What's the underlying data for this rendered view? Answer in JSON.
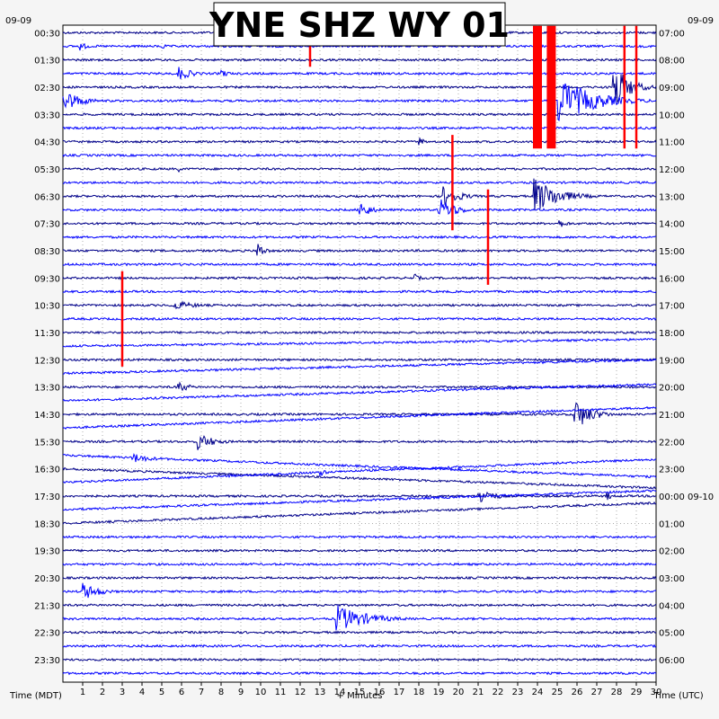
{
  "chart_data": {
    "type": "line",
    "title": "YNE SHZ WY 01",
    "xlabel": "+ Minutes",
    "left_axis_label": "Time (MDT)",
    "right_axis_label": "Time (UTC)",
    "left_date": "09-09",
    "right_date": "09-09",
    "xlim": [
      0,
      30
    ],
    "x_ticks": [
      "1",
      "2",
      "3",
      "4",
      "5",
      "6",
      "7",
      "8",
      "9",
      "10",
      "11",
      "12",
      "13",
      "14",
      "15",
      "16",
      "17",
      "18",
      "19",
      "20",
      "21",
      "22",
      "23",
      "24",
      "25",
      "26",
      "27",
      "28",
      "29",
      "30"
    ],
    "left_time_labels": [
      "00:30",
      "01:30",
      "02:30",
      "03:30",
      "04:30",
      "05:30",
      "06:30",
      "07:30",
      "08:30",
      "09:30",
      "10:30",
      "11:30",
      "12:30",
      "13:30",
      "14:30",
      "15:30",
      "16:30",
      "17:30",
      "18:30",
      "19:30",
      "20:30",
      "21:30",
      "22:30",
      "23:30"
    ],
    "right_time_labels": [
      "07:00",
      "08:00",
      "09:00",
      "10:00",
      "11:00",
      "12:00",
      "13:00",
      "14:00",
      "15:00",
      "16:00",
      "17:00",
      "18:00",
      "19:00",
      "20:00",
      "21:00",
      "22:00",
      "23:00",
      "00:00 09-10",
      "01:00",
      "02:00",
      "03:00",
      "04:00",
      "05:00",
      "06:00"
    ],
    "trace_count": 48,
    "trace_colors": [
      "#00008b",
      "#0000ff"
    ],
    "clip_color": "#ff0000",
    "grid": "dotted",
    "events": [
      {
        "trace": 1,
        "minute": 0.8,
        "amp": 6,
        "dur": 1.2
      },
      {
        "trace": 1,
        "minute": 5.0,
        "amp": 5,
        "dur": 0.5
      },
      {
        "trace": 5,
        "minute": 0.0,
        "amp": 14,
        "dur": 2.5
      },
      {
        "trace": 3,
        "minute": 5.8,
        "amp": 9,
        "dur": 2.0
      },
      {
        "trace": 3,
        "minute": 8.0,
        "amp": 6,
        "dur": 1.0
      },
      {
        "trace": 5,
        "minute": 25.0,
        "amp": 28,
        "dur": 5.0
      },
      {
        "trace": 4,
        "minute": 27.8,
        "amp": 30,
        "dur": 2.2
      },
      {
        "trace": 8,
        "minute": 18.0,
        "amp": 6,
        "dur": 0.8
      },
      {
        "trace": 10,
        "minute": 5.8,
        "amp": 4,
        "dur": 0.8
      },
      {
        "trace": 12,
        "minute": 19.2,
        "amp": 12,
        "dur": 2.5
      },
      {
        "trace": 12,
        "minute": 23.8,
        "amp": 22,
        "dur": 3.5
      },
      {
        "trace": 13,
        "minute": 15.0,
        "amp": 12,
        "dur": 1.5
      },
      {
        "trace": 13,
        "minute": 19.0,
        "amp": 14,
        "dur": 2.5
      },
      {
        "trace": 14,
        "minute": 25.0,
        "amp": 6,
        "dur": 1.5
      },
      {
        "trace": 16,
        "minute": 9.8,
        "amp": 12,
        "dur": 1.0
      },
      {
        "trace": 18,
        "minute": 17.7,
        "amp": 6,
        "dur": 1.0
      },
      {
        "trace": 20,
        "minute": 5.5,
        "amp": 6,
        "dur": 3.5
      },
      {
        "trace": 26,
        "minute": 5.8,
        "amp": 8,
        "dur": 1.5
      },
      {
        "trace": 28,
        "minute": 25.8,
        "amp": 20,
        "dur": 2.5
      },
      {
        "trace": 30,
        "minute": 6.8,
        "amp": 10,
        "dur": 2.5
      },
      {
        "trace": 31,
        "minute": 3.5,
        "amp": 6,
        "dur": 3.0
      },
      {
        "trace": 33,
        "minute": 13.0,
        "amp": 5,
        "dur": 1.0
      },
      {
        "trace": 34,
        "minute": 21.0,
        "amp": 12,
        "dur": 2.0
      },
      {
        "trace": 34,
        "minute": 27.5,
        "amp": 6,
        "dur": 0.8
      },
      {
        "trace": 41,
        "minute": 1.0,
        "amp": 10,
        "dur": 2.5
      },
      {
        "trace": 43,
        "minute": 13.8,
        "amp": 16,
        "dur": 4.5
      }
    ],
    "clips": [
      {
        "minute": 12.5,
        "from_trace": 0,
        "to_trace": 2
      },
      {
        "minute": 19.7,
        "from_trace": 8,
        "to_trace": 14
      },
      {
        "minute": 21.5,
        "from_trace": 12,
        "to_trace": 18
      },
      {
        "minute": 3.0,
        "from_trace": 18,
        "to_trace": 24
      },
      {
        "minute": 24.0,
        "from_trace": 0,
        "to_trace": 8,
        "block": true
      },
      {
        "minute": 24.7,
        "from_trace": 0,
        "to_trace": 8,
        "block": true
      },
      {
        "minute": 28.4,
        "from_trace": 0,
        "to_trace": 8
      },
      {
        "minute": 29.0,
        "from_trace": 0,
        "to_trace": 8
      }
    ],
    "drifts": [
      {
        "trace": 23,
        "slope": -0.5
      },
      {
        "trace": 25,
        "slope": -1.0
      },
      {
        "trace": 27,
        "slope": -1.2
      },
      {
        "trace": 29,
        "slope": -1.5
      },
      {
        "trace": 31,
        "slope": 1.6
      },
      {
        "trace": 32,
        "slope": 1.4
      },
      {
        "trace": 33,
        "slope": -1.7
      },
      {
        "trace": 35,
        "slope": -1.4
      },
      {
        "trace": 36,
        "slope": -1.5
      }
    ]
  }
}
